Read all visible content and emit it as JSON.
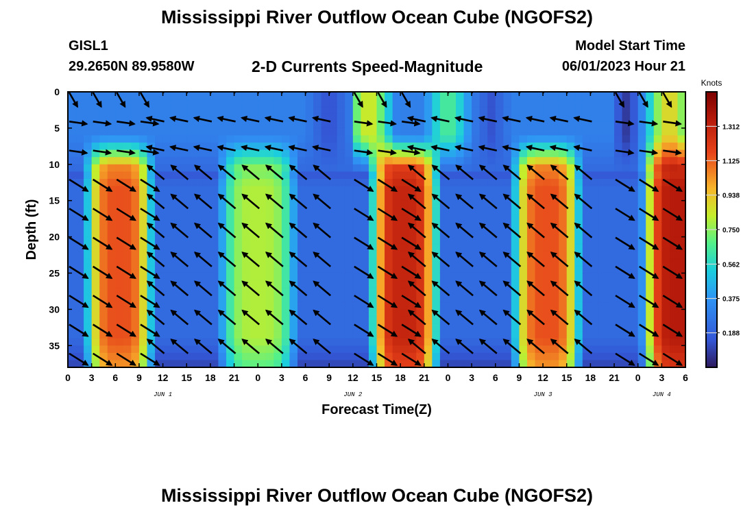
{
  "header": {
    "title": "Mississippi River Outflow Ocean Cube (NGOFS2)",
    "station_id": "GISL1",
    "station_coords": "29.2650N  89.9580W",
    "subtitle": "2-D Currents Speed-Magnitude",
    "start_label": "Model Start Time",
    "start_value": "06/01/2023 Hour 21"
  },
  "footer": {
    "title": "Mississippi River Outflow Ocean Cube (NGOFS2)"
  },
  "chart_data": {
    "type": "heatmap",
    "title": "2-D Currents Speed-Magnitude",
    "xlabel": "Forecast Time(Z)",
    "ylabel": "Depth (ft)",
    "x_unit": "hours since 2023-06-01 00Z",
    "xlim": [
      0,
      78
    ],
    "ylim": [
      38,
      0
    ],
    "y_reversed": true,
    "x_tick_labels": [
      "0",
      "3",
      "6",
      "9",
      "12",
      "15",
      "18",
      "21",
      "0",
      "3",
      "6",
      "9",
      "12",
      "15",
      "18",
      "21",
      "0",
      "3",
      "6",
      "9",
      "12",
      "15",
      "18",
      "21",
      "0",
      "3",
      "6"
    ],
    "day_labels": [
      {
        "hour": 12,
        "label": "JUN 1"
      },
      {
        "hour": 36,
        "label": "JUN 2"
      },
      {
        "hour": 60,
        "label": "JUN 3"
      },
      {
        "hour": 75,
        "label": "JUN 4"
      }
    ],
    "y_ticks": [
      0,
      5,
      10,
      15,
      20,
      25,
      30,
      35
    ],
    "colorbar": {
      "title": "Knots",
      "min": 0,
      "max": 1.5,
      "tick_values": [
        0.188,
        0.375,
        0.562,
        0.75,
        0.938,
        1.125,
        1.312
      ],
      "tick_labels": [
        "0.188",
        "0.375",
        "0.562",
        "0.750",
        "0.938",
        "1.125",
        "1.312"
      ],
      "colormap": "jet"
    },
    "speed_model": {
      "lower_layer": [
        {
          "center_hour": 6.5,
          "peak": 1.15
        },
        {
          "center_hour": 24,
          "peak": 0.8
        },
        {
          "center_hour": 42.5,
          "peak": 1.3
        },
        {
          "center_hour": 60.5,
          "peak": 1.15
        },
        {
          "center_hour": 77,
          "peak": 1.35
        }
      ],
      "upper_layer": [
        {
          "center_hour": 38,
          "peak": 0.85
        },
        {
          "center_hour": 48,
          "peak": 0.65
        },
        {
          "center_hour": 76,
          "peak": 0.9
        }
      ]
    },
    "vector_phases": [
      {
        "start_hour": 0,
        "end_hour": 11,
        "direction": "seaward (down-right)"
      },
      {
        "start_hour": 11,
        "end_hour": 34,
        "direction": "landward (up-left)"
      },
      {
        "start_hour": 34,
        "end_hour": 45,
        "direction": "seaward (down-right)"
      },
      {
        "start_hour": 45,
        "end_hour": 57,
        "direction": "landward (up-left)"
      },
      {
        "start_hour": 57,
        "end_hour": 69,
        "direction": "landward (up-left)"
      },
      {
        "start_hour": 69,
        "end_hour": 78,
        "direction": "seaward (down-right)"
      }
    ]
  }
}
